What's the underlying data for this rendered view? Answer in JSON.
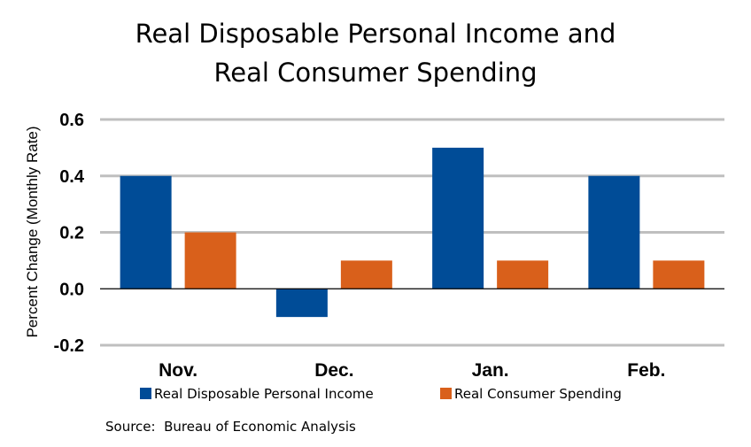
{
  "chart_data": {
    "type": "bar",
    "title_line1": "Real Disposable Personal Income and",
    "title_line2": "Real Consumer Spending",
    "ylabel": "Percent Change (Monthly Rate)",
    "xlabel": "",
    "categories": [
      "Nov.",
      "Dec.",
      "Jan.",
      "Feb."
    ],
    "series": [
      {
        "name": "Real Disposable Personal Income",
        "values": [
          0.4,
          -0.1,
          0.5,
          0.4
        ],
        "color": "#004C97"
      },
      {
        "name": "Real Consumer Spending",
        "values": [
          0.2,
          0.1,
          0.1,
          0.1
        ],
        "color": "#D9601B"
      }
    ],
    "ylim": [
      -0.2,
      0.6
    ],
    "yticks": [
      "0.6",
      "0.4",
      "0.2",
      "0.0",
      "-0.2"
    ],
    "ytick_values": [
      0.6,
      0.4,
      0.2,
      0.0,
      -0.2
    ],
    "grid": true,
    "legend": "bottom",
    "source": "Source:  Bureau of Economic Analysis"
  }
}
